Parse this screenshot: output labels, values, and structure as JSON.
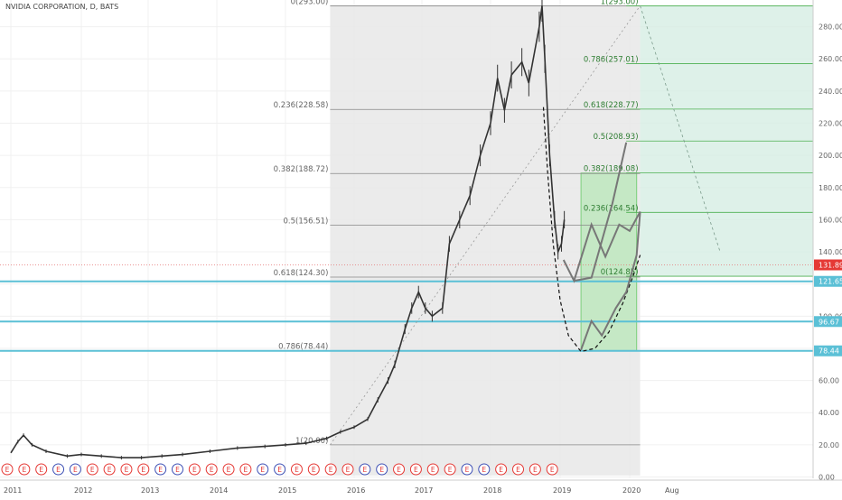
{
  "chart_data": {
    "type": "line",
    "title": "NVIDIA CORPORATION, D, BATS",
    "x_ticks": [
      "2011",
      "2012",
      "2013",
      "2014",
      "2015",
      "2016",
      "2017",
      "2018",
      "2019",
      "2020",
      "Aug"
    ],
    "y_ticks": [
      "0.00",
      "20.00",
      "40.00",
      "60.00",
      "80.00",
      "100.00",
      "120.00",
      "140.00",
      "160.00",
      "180.00",
      "200.00",
      "220.00",
      "240.00",
      "260.00",
      "280.00"
    ],
    "ylim": [
      -2,
      296
    ],
    "price_series": [
      {
        "x": 2011.0,
        "y": 15
      },
      {
        "x": 2011.1,
        "y": 22
      },
      {
        "x": 2011.18,
        "y": 26
      },
      {
        "x": 2011.3,
        "y": 20
      },
      {
        "x": 2011.5,
        "y": 16
      },
      {
        "x": 2011.8,
        "y": 13
      },
      {
        "x": 2012.0,
        "y": 14
      },
      {
        "x": 2012.3,
        "y": 13
      },
      {
        "x": 2012.6,
        "y": 12
      },
      {
        "x": 2012.9,
        "y": 12
      },
      {
        "x": 2013.2,
        "y": 13
      },
      {
        "x": 2013.5,
        "y": 14
      },
      {
        "x": 2013.9,
        "y": 16
      },
      {
        "x": 2014.3,
        "y": 18
      },
      {
        "x": 2014.7,
        "y": 19
      },
      {
        "x": 2015.0,
        "y": 20
      },
      {
        "x": 2015.3,
        "y": 21
      },
      {
        "x": 2015.6,
        "y": 24
      },
      {
        "x": 2015.8,
        "y": 28
      },
      {
        "x": 2016.0,
        "y": 31
      },
      {
        "x": 2016.2,
        "y": 36
      },
      {
        "x": 2016.35,
        "y": 48
      },
      {
        "x": 2016.5,
        "y": 60
      },
      {
        "x": 2016.6,
        "y": 70
      },
      {
        "x": 2016.75,
        "y": 92
      },
      {
        "x": 2016.85,
        "y": 105
      },
      {
        "x": 2016.95,
        "y": 115
      },
      {
        "x": 2017.05,
        "y": 105
      },
      {
        "x": 2017.15,
        "y": 100
      },
      {
        "x": 2017.3,
        "y": 105
      },
      {
        "x": 2017.4,
        "y": 145
      },
      {
        "x": 2017.55,
        "y": 160
      },
      {
        "x": 2017.7,
        "y": 175
      },
      {
        "x": 2017.85,
        "y": 200
      },
      {
        "x": 2018.0,
        "y": 220
      },
      {
        "x": 2018.1,
        "y": 248
      },
      {
        "x": 2018.2,
        "y": 228
      },
      {
        "x": 2018.3,
        "y": 250
      },
      {
        "x": 2018.45,
        "y": 258
      },
      {
        "x": 2018.55,
        "y": 245
      },
      {
        "x": 2018.7,
        "y": 280
      },
      {
        "x": 2018.74,
        "y": 293
      },
      {
        "x": 2018.78,
        "y": 260
      },
      {
        "x": 2018.85,
        "y": 200
      },
      {
        "x": 2018.92,
        "y": 160
      },
      {
        "x": 2018.97,
        "y": 140
      },
      {
        "x": 2019.02,
        "y": 145
      },
      {
        "x": 2019.06,
        "y": 160
      }
    ],
    "fib_left": {
      "levels": [
        {
          "label": "0(293.00)",
          "value": 293.0
        },
        {
          "label": "0.236(228.58)",
          "value": 228.58
        },
        {
          "label": "0.382(188.72)",
          "value": 188.72
        },
        {
          "label": "0.5(156.51)",
          "value": 156.51
        },
        {
          "label": "0.618(124.30)",
          "value": 124.3
        },
        {
          "label": "0.786(78.44)",
          "value": 78.44
        },
        {
          "label": "1(20.00)",
          "value": 20.0
        }
      ]
    },
    "fib_right": {
      "levels": [
        {
          "label": "1(293.00)",
          "value": 293.0
        },
        {
          "label": "0.786(257.01)",
          "value": 257.01
        },
        {
          "label": "0.618(228.77)",
          "value": 228.77
        },
        {
          "label": "0.5(208.93)",
          "value": 208.93
        },
        {
          "label": "0.382(189.08)",
          "value": 189.08
        },
        {
          "label": "0.236(164.54)",
          "value": 164.54
        },
        {
          "label": "0(124.85)",
          "value": 124.85
        }
      ]
    },
    "horizontal_lines": [
      {
        "value": 121.65,
        "color": "#5bc0d6"
      },
      {
        "value": 96.67,
        "color": "#5bc0d6"
      },
      {
        "value": 78.44,
        "color": "#5bc0d6"
      }
    ],
    "price_labels": [
      {
        "text": "131.89",
        "value": 131.89,
        "color": "#e53935"
      },
      {
        "text": "121.65",
        "value": 121.65,
        "color": "#5bc0d6"
      },
      {
        "text": "96.67",
        "value": 96.67,
        "color": "#5bc0d6"
      },
      {
        "text": "78.44",
        "value": 78.44,
        "color": "#5bc0d6"
      }
    ],
    "current_price_line": {
      "value": 131.89,
      "color": "#e57373"
    },
    "zigzag_upper": [
      {
        "x": 2019.05,
        "y": 135
      },
      {
        "x": 2019.2,
        "y": 122
      },
      {
        "x": 2019.45,
        "y": 157
      },
      {
        "x": 2019.65,
        "y": 137
      },
      {
        "x": 2019.85,
        "y": 157
      },
      {
        "x": 2020.0,
        "y": 153
      },
      {
        "x": 2020.15,
        "y": 165
      }
    ],
    "zigzag_upper_b": [
      {
        "x": 2019.2,
        "y": 122
      },
      {
        "x": 2019.45,
        "y": 124
      },
      {
        "x": 2019.75,
        "y": 170
      },
      {
        "x": 2019.95,
        "y": 208
      }
    ],
    "zigzag_lower": [
      {
        "x": 2019.3,
        "y": 79
      },
      {
        "x": 2019.45,
        "y": 97
      },
      {
        "x": 2019.6,
        "y": 88
      },
      {
        "x": 2019.8,
        "y": 105
      },
      {
        "x": 2019.95,
        "y": 115
      },
      {
        "x": 2020.1,
        "y": 138
      },
      {
        "x": 2020.15,
        "y": 165
      }
    ],
    "bowl_curve": [
      {
        "x": 2018.76,
        "y": 230
      },
      {
        "x": 2018.82,
        "y": 190
      },
      {
        "x": 2018.9,
        "y": 145
      },
      {
        "x": 2019.0,
        "y": 110
      },
      {
        "x": 2019.12,
        "y": 88
      },
      {
        "x": 2019.3,
        "y": 78
      },
      {
        "x": 2019.5,
        "y": 80
      },
      {
        "x": 2019.7,
        "y": 90
      },
      {
        "x": 2019.9,
        "y": 108
      },
      {
        "x": 2020.05,
        "y": 125
      },
      {
        "x": 2020.15,
        "y": 138
      }
    ],
    "trend_line": {
      "from": {
        "x": 2015.65,
        "y": 20
      },
      "to": {
        "x": 2020.15,
        "y": 293
      }
    },
    "projection_line": {
      "from": {
        "x": 2020.15,
        "y": 293
      },
      "to": {
        "x": 2021.3,
        "y": 140
      }
    },
    "earnings_marker": "E",
    "earnings_marker_count": 33,
    "colors": {
      "shaded_region": "#e8e8e8",
      "green_box": "#b8e7b8",
      "green_region": "#d6eee4",
      "candles": "#333333",
      "fib_line": "#888888",
      "fib_right_line": "#4caf50",
      "earnings_red": "#e53935",
      "earnings_blue": "#3f51b5"
    }
  }
}
